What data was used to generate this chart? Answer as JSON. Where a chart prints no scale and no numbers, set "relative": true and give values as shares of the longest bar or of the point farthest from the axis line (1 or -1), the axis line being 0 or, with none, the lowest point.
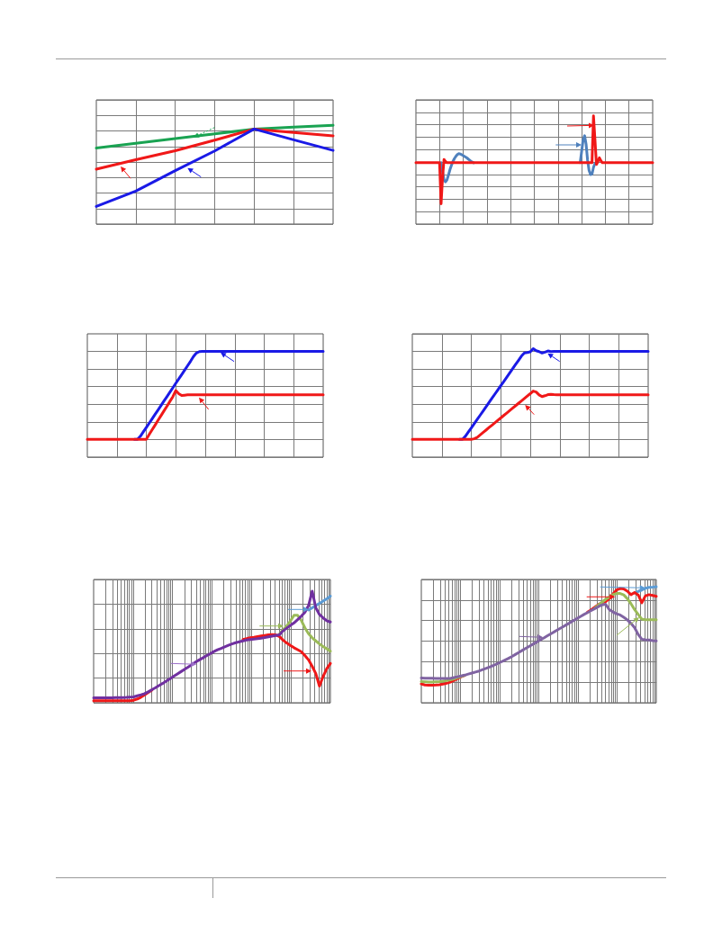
{
  "chart_data": [
    {
      "type": "line",
      "categories": [
        null,
        null,
        null,
        null,
        null,
        null,
        null
      ],
      "relative": true,
      "grid": true,
      "marker": "none",
      "series": [
        {
          "color": "#1aa352",
          "values": [
            0.769,
            0.817,
            0.865,
            0.913,
            0.962,
            0.981,
            1
          ]
        },
        {
          "color": "#f01818",
          "values": [
            0.556,
            0.651,
            0.743,
            0.849,
            0.962,
            0.927,
            0.893
          ]
        },
        {
          "color": "#1a1ae6",
          "values": [
            0.178,
            0.334,
            0.541,
            0.74,
            0.962,
            0.853,
            0.746
          ]
        }
      ]
    },
    {
      "type": "line",
      "categories": [
        null,
        null,
        null,
        null,
        null,
        null,
        null,
        null,
        null,
        null,
        null,
        null,
        null,
        null,
        null,
        null,
        null,
        null,
        null,
        null,
        null,
        null,
        null,
        null,
        null,
        null,
        null,
        null,
        null,
        null,
        null,
        null,
        null,
        null,
        null,
        null,
        null,
        null,
        null,
        null,
        null,
        null,
        null,
        null,
        null,
        null,
        null,
        null,
        null,
        null,
        null,
        null,
        null,
        null,
        null,
        null,
        null,
        null,
        null,
        null,
        null,
        null,
        null,
        null,
        null,
        null,
        null,
        null,
        null,
        null,
        null,
        null,
        null,
        null,
        null,
        null,
        null,
        null,
        null,
        null,
        null,
        null,
        null,
        null,
        null,
        null,
        null,
        null,
        null,
        null,
        null,
        null,
        null,
        null,
        null,
        null,
        null,
        null,
        null,
        null,
        null,
        null,
        null,
        null,
        null,
        null,
        null,
        null,
        null,
        null,
        null,
        null,
        null,
        null,
        null,
        null,
        null,
        null,
        null,
        null,
        null,
        null,
        null,
        null,
        null,
        null,
        null,
        null,
        null,
        null,
        null,
        null,
        null,
        null,
        null,
        null,
        null,
        null,
        null,
        null,
        null,
        null,
        null,
        null,
        null,
        null,
        null,
        null,
        null,
        null,
        null,
        null,
        null,
        null,
        null,
        null,
        null,
        null,
        null,
        null,
        null
      ],
      "relative": true,
      "grid": true,
      "marker": "none",
      "series": [
        {
          "color": "#4f81bd",
          "values": [
            null,
            null,
            null,
            null,
            null,
            null,
            null,
            null,
            null,
            null,
            null,
            null,
            null,
            null,
            null,
            null,
            null,
            0.567,
            0.484,
            0.409,
            0.39,
            0.409,
            0.452,
            0.503,
            0.543,
            0.578,
            0.605,
            0.626,
            0.642,
            0.651,
            0.648,
            0.64,
            0.632,
            0.624,
            0.616,
            0.605,
            0.594,
            0.583,
            0.573,
            0.567,
            null,
            null,
            null,
            null,
            null,
            null,
            null,
            null,
            null,
            null,
            null,
            null,
            null,
            null,
            null,
            null,
            null,
            null,
            null,
            null,
            null,
            null,
            null,
            null,
            null,
            null,
            null,
            null,
            null,
            null,
            null,
            null,
            null,
            null,
            null,
            null,
            null,
            null,
            null,
            null,
            null,
            null,
            null,
            null,
            null,
            null,
            null,
            null,
            null,
            null,
            null,
            null,
            null,
            null,
            null,
            null,
            null,
            null,
            null,
            null,
            null,
            null,
            null,
            null,
            null,
            null,
            null,
            null,
            null,
            null,
            null,
            0.567,
            0.672,
            0.78,
            0.817,
            0.739,
            0.591,
            0.497,
            0.457,
            0.462,
            0.524,
            0.559,
            0.567,
            null,
            null,
            null,
            null,
            null,
            null,
            null,
            null,
            null,
            null,
            null,
            null,
            null,
            null,
            null,
            null,
            null,
            null,
            null,
            null,
            null,
            null,
            null,
            null,
            null,
            null,
            null,
            null,
            null,
            null,
            null,
            null,
            null,
            null,
            null,
            null,
            null,
            null
          ]
        },
        {
          "color": "#f01818",
          "values": [
            0.567,
            0.567,
            0.567,
            0.567,
            0.567,
            0.567,
            0.567,
            0.567,
            0.567,
            0.567,
            0.567,
            0.567,
            0.567,
            0.567,
            0.567,
            0.567,
            0.567,
            0.188,
            0.43,
            0.597,
            0.578,
            0.567,
            0.567,
            0.567,
            0.567,
            0.567,
            0.567,
            0.567,
            0.567,
            0.567,
            0.567,
            0.567,
            0.567,
            0.567,
            0.567,
            0.567,
            0.567,
            0.567,
            0.567,
            0.567,
            0.567,
            0.567,
            0.567,
            0.567,
            0.567,
            0.567,
            0.567,
            0.567,
            0.567,
            0.567,
            0.567,
            0.567,
            0.567,
            0.567,
            0.567,
            0.567,
            0.567,
            0.567,
            0.567,
            0.567,
            0.567,
            0.567,
            0.567,
            0.567,
            0.567,
            0.567,
            0.567,
            0.567,
            0.567,
            0.567,
            0.567,
            0.567,
            0.567,
            0.567,
            0.567,
            0.567,
            0.567,
            0.567,
            0.567,
            0.567,
            0.567,
            0.567,
            0.567,
            0.567,
            0.567,
            0.567,
            0.567,
            0.567,
            0.567,
            0.567,
            0.567,
            0.567,
            0.567,
            0.567,
            0.567,
            0.567,
            0.567,
            0.567,
            0.567,
            0.567,
            0.567,
            0.567,
            0.567,
            0.567,
            0.567,
            0.567,
            0.567,
            0.567,
            0.567,
            0.567,
            0.567,
            0.567,
            0.567,
            0.567,
            0.567,
            0.567,
            0.567,
            0.567,
            0.567,
            0.567,
            1,
            0.78,
            0.551,
            0.578,
            0.613,
            0.586,
            0.567,
            0.567,
            0.567,
            0.567,
            0.567,
            0.567,
            0.567,
            0.567,
            0.567,
            0.567,
            0.567,
            0.567,
            0.567,
            0.567,
            0.567,
            0.567,
            0.567,
            0.567,
            0.567,
            0.567,
            0.567,
            0.567,
            0.567,
            0.567,
            0.567,
            0.567,
            0.567,
            0.567,
            0.567,
            0.567,
            0.567,
            0.567,
            0.567,
            0.567,
            0.567
          ]
        }
      ]
    },
    {
      "type": "line",
      "categories": [
        null,
        null,
        null,
        null,
        null,
        null,
        null,
        null,
        null,
        null,
        null,
        null,
        null,
        null,
        null,
        null,
        null,
        null,
        null,
        null,
        null,
        null,
        null,
        null,
        null,
        null,
        null,
        null,
        null,
        null,
        null,
        null,
        null,
        null,
        null,
        null,
        null,
        null,
        null,
        null,
        null,
        null,
        null,
        null,
        null,
        null,
        null,
        null,
        null,
        null,
        null,
        null,
        null,
        null,
        null,
        null,
        null,
        null,
        null,
        null,
        null,
        null,
        null,
        null,
        null,
        null,
        null,
        null,
        null,
        null,
        null,
        null,
        null,
        null,
        null,
        null,
        null,
        null,
        null,
        null,
        null
      ],
      "relative": true,
      "grid": true,
      "marker": "none",
      "series": [
        {
          "color": "#1a1ae6",
          "values": [
            null,
            null,
            null,
            null,
            null,
            null,
            null,
            null,
            null,
            null,
            null,
            null,
            null,
            null,
            null,
            null,
            0.168,
            0.168,
            0.197,
            0.239,
            0.28,
            0.321,
            0.363,
            0.405,
            0.446,
            0.488,
            0.53,
            0.571,
            0.613,
            0.655,
            0.697,
            0.738,
            0.779,
            0.821,
            0.863,
            0.905,
            0.951,
            0.984,
            0.997,
            1,
            1,
            1,
            1,
            1,
            1,
            1,
            1,
            1,
            1,
            1,
            1,
            1,
            1,
            1,
            1,
            1,
            1,
            1,
            1,
            1,
            1,
            1,
            1,
            1,
            1,
            1,
            1,
            1,
            1,
            1,
            1,
            1,
            1,
            1,
            1,
            1,
            1,
            1,
            1,
            1,
            1
          ]
        },
        {
          "color": "#f01818",
          "values": [
            0.168,
            0.168,
            0.168,
            0.168,
            0.168,
            0.168,
            0.168,
            0.168,
            0.168,
            0.168,
            0.168,
            0.168,
            0.168,
            0.168,
            0.168,
            0.168,
            0.168,
            0.168,
            0.168,
            0.168,
            0.168,
            0.214,
            0.259,
            0.303,
            0.348,
            0.392,
            0.437,
            0.481,
            0.526,
            0.57,
            0.629,
            0.599,
            0.582,
            0.585,
            0.588,
            0.588,
            0.588,
            0.588,
            0.588,
            0.588,
            0.588,
            0.588,
            0.588,
            0.588,
            0.588,
            0.588,
            0.588,
            0.588,
            0.588,
            0.588,
            0.588,
            0.588,
            0.588,
            0.588,
            0.588,
            0.588,
            0.588,
            0.588,
            0.588,
            0.588,
            0.588,
            0.588,
            0.588,
            0.588,
            0.588,
            0.588,
            0.588,
            0.588,
            0.588,
            0.588,
            0.588,
            0.588,
            0.588,
            0.588,
            0.588,
            0.588,
            0.588,
            0.588,
            0.588,
            0.588,
            0.588
          ]
        }
      ]
    },
    {
      "type": "line",
      "categories": [
        null,
        null,
        null,
        null,
        null,
        null,
        null,
        null,
        null,
        null,
        null,
        null,
        null,
        null,
        null,
        null,
        null,
        null,
        null,
        null,
        null,
        null,
        null,
        null,
        null,
        null,
        null,
        null,
        null,
        null,
        null,
        null,
        null,
        null,
        null,
        null,
        null,
        null,
        null,
        null,
        null,
        null,
        null,
        null,
        null,
        null,
        null,
        null,
        null,
        null,
        null,
        null,
        null,
        null,
        null,
        null,
        null,
        null,
        null,
        null,
        null,
        null,
        null,
        null,
        null,
        null,
        null,
        null,
        null,
        null,
        null,
        null,
        null,
        null,
        null,
        null,
        null,
        null,
        null,
        null,
        null
      ],
      "relative": true,
      "grid": true,
      "marker": "none",
      "series": [
        {
          "color": "#1a1ae6",
          "values": [
            null,
            null,
            null,
            null,
            null,
            null,
            null,
            null,
            null,
            null,
            null,
            null,
            null,
            null,
            null,
            null,
            0.164,
            0.164,
            0.192,
            0.231,
            0.269,
            0.308,
            0.347,
            0.386,
            0.425,
            0.464,
            0.503,
            0.542,
            0.581,
            0.62,
            0.659,
            0.697,
            0.736,
            0.775,
            0.814,
            0.853,
            0.892,
            0.931,
            0.96,
            0.965,
            0.971,
            1,
            0.981,
            0.973,
            0.96,
            0.968,
            0.979,
            0.973,
            0.976,
            0.976,
            0.976,
            0.976,
            0.976,
            0.976,
            0.976,
            0.976,
            0.976,
            0.976,
            0.976,
            0.976,
            0.976,
            0.976,
            0.976,
            0.976,
            0.976,
            0.976,
            0.976,
            0.976,
            0.976,
            0.976,
            0.976,
            0.976,
            0.976,
            0.976,
            0.976,
            0.976,
            0.976,
            0.976,
            0.976,
            0.976,
            0.976
          ]
        },
        {
          "color": "#f01818",
          "values": [
            0.164,
            0.164,
            0.164,
            0.164,
            0.164,
            0.164,
            0.164,
            0.164,
            0.164,
            0.164,
            0.164,
            0.164,
            0.164,
            0.164,
            0.164,
            0.164,
            0.164,
            0.164,
            0.164,
            0.164,
            0.164,
            0.169,
            0.182,
            0.204,
            0.227,
            0.249,
            0.272,
            0.294,
            0.316,
            0.339,
            0.361,
            0.384,
            0.406,
            0.428,
            0.451,
            0.473,
            0.496,
            0.518,
            0.54,
            0.563,
            0.585,
            0.609,
            0.601,
            0.574,
            0.558,
            0.566,
            0.576,
            0.579,
            0.576,
            0.574,
            0.574,
            0.574,
            0.574,
            0.574,
            0.574,
            0.574,
            0.574,
            0.574,
            0.574,
            0.574,
            0.574,
            0.574,
            0.574,
            0.574,
            0.574,
            0.574,
            0.574,
            0.574,
            0.574,
            0.574,
            0.574,
            0.574,
            0.574,
            0.574,
            0.574,
            0.574,
            0.574,
            0.574,
            0.574,
            0.574,
            0.574
          ]
        }
      ]
    },
    {
      "type": "line",
      "categories": [
        null,
        null,
        null,
        null,
        null,
        null,
        null,
        null,
        null,
        null,
        null,
        null,
        null,
        null,
        null,
        null,
        null,
        null,
        null,
        null,
        null,
        null,
        null,
        null,
        null,
        null,
        null,
        null,
        null,
        null,
        null,
        null,
        null,
        null,
        null,
        null,
        null,
        null,
        null,
        null,
        null,
        null,
        null,
        null,
        null,
        null,
        null,
        null,
        null,
        null,
        null,
        null,
        null,
        null,
        null,
        null,
        null,
        null,
        null,
        null,
        null,
        null,
        null,
        null,
        null,
        null
      ],
      "relative": true,
      "grid": true,
      "marker": "none",
      "log": "x",
      "series": [
        {
          "color": "#f01818",
          "values": [
            0.018,
            0.018,
            0.018,
            0.018,
            0.018,
            0.018,
            0.018,
            0.018,
            0.018,
            0.018,
            0.018,
            0.023,
            0.034,
            0.05,
            0.07,
            0.092,
            0.113,
            null,
            null,
            null,
            null,
            null,
            null,
            null,
            null,
            null,
            null,
            null,
            null,
            null,
            null,
            null,
            null,
            null,
            null,
            null,
            null,
            null,
            null,
            null,
            null,
            0.567,
            0.574,
            0.582,
            0.587,
            0.593,
            0.598,
            0.603,
            0.608,
            0.611,
            0.608,
            0.593,
            0.561,
            0.535,
            0.514,
            0.493,
            0.475,
            0.457,
            0.423,
            0.384,
            0.326,
            0.261,
            0.149,
            0.235,
            0.305,
            0.352
          ]
        },
        {
          "color": "#9bbb59",
          "values": [
            null,
            null,
            null,
            null,
            null,
            null,
            null,
            null,
            null,
            null,
            null,
            null,
            null,
            null,
            null,
            null,
            null,
            null,
            null,
            null,
            null,
            null,
            null,
            null,
            null,
            null,
            null,
            null,
            null,
            null,
            null,
            null,
            null,
            null,
            null,
            null,
            null,
            null,
            null,
            null,
            null,
            null,
            null,
            null,
            null,
            null,
            null,
            null,
            null,
            null,
            null,
            0.614,
            0.653,
            0.687,
            0.731,
            0.783,
            0.783,
            0.739,
            0.671,
            0.619,
            0.582,
            0.554,
            0.527,
            0.504,
            0.483,
            0.462
          ]
        },
        {
          "color": "#5b9bd5",
          "values": [
            null,
            null,
            null,
            null,
            null,
            null,
            null,
            null,
            null,
            null,
            null,
            null,
            null,
            null,
            null,
            null,
            null,
            null,
            null,
            null,
            null,
            null,
            null,
            null,
            null,
            null,
            null,
            null,
            null,
            null,
            null,
            null,
            null,
            null,
            null,
            null,
            null,
            null,
            null,
            null,
            null,
            null,
            null,
            null,
            null,
            null,
            null,
            null,
            null,
            null,
            null,
            null,
            null,
            null,
            null,
            null,
            null,
            null,
            null,
            0.83,
            0.85,
            0.87,
            0.89,
            0.91,
            0.93,
            0.955
          ]
        },
        {
          "color": "#7030a0",
          "values": [
            0.044,
            0.044,
            0.044,
            0.044,
            0.044,
            0.044,
            0.046,
            0.047,
            0.047,
            0.048,
            0.05,
            0.052,
            0.062,
            0.071,
            0.081,
            0.098,
            0.117,
            0.135,
            0.155,
            0.174,
            0.195,
            0.216,
            0.237,
            0.258,
            0.279,
            0.3,
            0.321,
            0.342,
            0.364,
            0.384,
            0.402,
            0.421,
            0.439,
            0.458,
            0.474,
            0.487,
            0.501,
            0.514,
            0.527,
            0.538,
            0.546,
            0.554,
            0.562,
            0.566,
            0.57,
            0.574,
            0.579,
            0.584,
            0.59,
            0.596,
            0.602,
            0.608,
            0.644,
            0.668,
            0.692,
            0.715,
            0.745,
            0.775,
            0.81,
            0.87,
            1,
            0.85,
            0.79,
            0.76,
            0.735,
            0.723
          ]
        }
      ]
    },
    {
      "type": "line",
      "categories": [
        null,
        null,
        null,
        null,
        null,
        null,
        null,
        null,
        null,
        null,
        null,
        null,
        null,
        null,
        null,
        null,
        null,
        null,
        null,
        null,
        null,
        null,
        null,
        null,
        null,
        null,
        null,
        null,
        null,
        null,
        null,
        null,
        null,
        null,
        null,
        null,
        null,
        null,
        null,
        null,
        null,
        null,
        null,
        null,
        null,
        null,
        null,
        null,
        null,
        null,
        null,
        null,
        null,
        null,
        null,
        null,
        null,
        null,
        null,
        null,
        null,
        null,
        null,
        null,
        null,
        null
      ],
      "relative": true,
      "grid": true,
      "marker": "none",
      "log": "x",
      "series": [
        {
          "color": "#5b9bd5",
          "values": [
            null,
            null,
            null,
            null,
            null,
            null,
            null,
            null,
            null,
            null,
            null,
            null,
            null,
            null,
            null,
            null,
            null,
            null,
            null,
            null,
            null,
            null,
            null,
            null,
            null,
            null,
            null,
            null,
            null,
            null,
            null,
            null,
            null,
            null,
            null,
            null,
            null,
            null,
            null,
            null,
            null,
            null,
            null,
            null,
            null,
            null,
            null,
            null,
            null,
            null,
            null,
            null,
            null,
            null,
            null,
            null,
            null,
            null,
            null,
            0.947,
            0.96,
            0.972,
            0.987,
            0.995,
            0.997,
            1
          ]
        },
        {
          "color": "#f01818",
          "values": [
            0.163,
            0.153,
            0.151,
            0.151,
            0.153,
            0.156,
            0.161,
            0.168,
            0.178,
            0.193,
            0.209,
            0.224,
            0.236,
            null,
            null,
            null,
            null,
            null,
            null,
            null,
            null,
            null,
            null,
            null,
            null,
            null,
            null,
            null,
            null,
            null,
            null,
            null,
            null,
            null,
            null,
            null,
            null,
            null,
            null,
            null,
            null,
            null,
            null,
            null,
            null,
            null,
            0.781,
            0.802,
            0.824,
            0.847,
            0.862,
            0.872,
            0.897,
            0.937,
            0.972,
            0.985,
            0.982,
            0.962,
            0.932,
            0.95,
            0.93,
            0.862,
            0.922,
            0.932,
            0.925,
            0.917
          ]
        },
        {
          "color": "#9bbb59",
          "values": [
            0.183,
            0.181,
            0.178,
            0.178,
            0.181,
            0.183,
            0.186,
            0.191,
            0.198,
            0.205,
            0.216,
            0.227,
            0.236,
            null,
            null,
            null,
            null,
            null,
            null,
            null,
            null,
            null,
            null,
            null,
            null,
            null,
            null,
            null,
            null,
            null,
            null,
            null,
            null,
            null,
            null,
            null,
            null,
            null,
            null,
            null,
            null,
            null,
            null,
            null,
            null,
            null,
            null,
            null,
            0.817,
            0.842,
            0.867,
            0.892,
            0.912,
            0.932,
            0.942,
            0.942,
            0.93,
            0.897,
            0.854,
            0.804,
            0.761,
            0.721,
            0.716,
            0.716,
            0.716,
            0.716
          ]
        },
        {
          "color": "#8064a2",
          "values": [
            0.214,
            0.212,
            0.211,
            0.211,
            0.21,
            0.209,
            0.209,
            0.209,
            0.209,
            0.217,
            0.224,
            0.231,
            0.238,
            0.247,
            0.256,
            0.265,
            0.274,
            0.286,
            0.298,
            0.31,
            0.322,
            0.336,
            0.351,
            0.366,
            0.381,
            0.398,
            0.416,
            0.434,
            0.453,
            0.471,
            0.489,
            0.507,
            0.525,
            0.543,
            0.561,
            0.58,
            0.598,
            0.616,
            0.634,
            0.652,
            0.67,
            0.688,
            0.707,
            0.725,
            0.743,
            0.761,
            0.778,
            0.795,
            0.812,
            0.829,
            0.844,
            0.849,
            0.803,
            0.783,
            0.767,
            0.757,
            0.737,
            0.715,
            0.684,
            0.648,
            0.589,
            0.548,
            0.544,
            0.541,
            0.536,
            0.533
          ]
        }
      ]
    }
  ]
}
